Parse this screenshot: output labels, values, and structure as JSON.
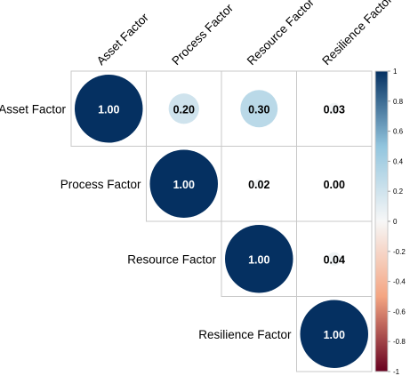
{
  "chart_data": {
    "type": "heatmap",
    "variant": "upper-triangle correlation plot with circle markers",
    "variables": [
      "Asset Factor",
      "Process Factor",
      "Resource Factor",
      "Resilience Factor"
    ],
    "matrix": [
      [
        1.0,
        0.2,
        0.3,
        0.03
      ],
      [
        null,
        1.0,
        0.02,
        0.0
      ],
      [
        null,
        null,
        1.0,
        0.04
      ],
      [
        null,
        null,
        null,
        1.0
      ]
    ],
    "value_labels": [
      [
        "1.00",
        "0.20",
        "0.30",
        "0.03"
      ],
      [
        null,
        "1.00",
        "0.02",
        "0.00"
      ],
      [
        null,
        null,
        "1.00",
        "0.04"
      ],
      [
        null,
        null,
        null,
        "1.00"
      ]
    ],
    "marker": "circle sized by absolute correlation",
    "colorbar": {
      "range": [
        -1,
        1
      ],
      "ticks": [
        "1",
        "0.8",
        "0.6",
        "0.4",
        "0.2",
        "0",
        "-0.2",
        "-0.4",
        "-0.6",
        "-0.8",
        "-1"
      ],
      "position": "right",
      "colors": {
        "negative_end": "#67001f",
        "negative_mid": "#f4a582",
        "zero": "#f7f7f7",
        "positive_mid": "#92c5de",
        "positive_end": "#053061"
      }
    },
    "title": "",
    "xlabel": "",
    "ylabel": ""
  }
}
